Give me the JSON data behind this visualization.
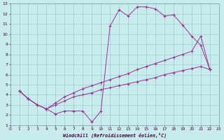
{
  "bg_color": "#c8ecec",
  "grid_color": "#9dc8d2",
  "line_color": "#993399",
  "xlabel": "Windchill (Refroidissement éolien,°C)",
  "xlim": [
    0,
    23
  ],
  "ylim": [
    1,
    13
  ],
  "xticks": [
    0,
    1,
    2,
    3,
    4,
    5,
    6,
    7,
    8,
    9,
    10,
    11,
    12,
    13,
    14,
    15,
    16,
    17,
    18,
    19,
    20,
    21,
    22,
    23
  ],
  "yticks": [
    1,
    2,
    3,
    4,
    5,
    6,
    7,
    8,
    9,
    10,
    11,
    12,
    13
  ],
  "line1_x": [
    1,
    2,
    3,
    4,
    5,
    6,
    7,
    8,
    9,
    10,
    11,
    12,
    13,
    14,
    15,
    16,
    17,
    18,
    19,
    20,
    21,
    22
  ],
  "line1_y": [
    4.4,
    3.6,
    3.0,
    2.6,
    2.1,
    2.4,
    2.4,
    2.4,
    1.3,
    2.4,
    10.8,
    12.4,
    11.8,
    12.7,
    12.7,
    12.5,
    11.8,
    11.9,
    10.9,
    9.8,
    8.9,
    6.5
  ],
  "line2_x": [
    1,
    2,
    3,
    4,
    5,
    6,
    7,
    8,
    9,
    10,
    11,
    12,
    13,
    14,
    15,
    16,
    17,
    18,
    19,
    20,
    21,
    22
  ],
  "line2_y": [
    4.4,
    3.6,
    3.0,
    2.6,
    3.0,
    3.4,
    3.8,
    4.0,
    4.2,
    4.5,
    4.7,
    4.9,
    5.1,
    5.3,
    5.5,
    5.7,
    6.0,
    6.2,
    6.4,
    6.6,
    6.8,
    6.5
  ],
  "line3_x": [
    1,
    2,
    3,
    4,
    5,
    6,
    7,
    8,
    9,
    10,
    11,
    12,
    13,
    14,
    15,
    16,
    17,
    18,
    19,
    20,
    21,
    22
  ],
  "line3_y": [
    4.4,
    3.6,
    3.0,
    2.6,
    3.2,
    3.8,
    4.2,
    4.6,
    4.9,
    5.2,
    5.5,
    5.8,
    6.1,
    6.5,
    6.8,
    7.1,
    7.4,
    7.7,
    8.0,
    8.3,
    9.8,
    6.5
  ]
}
